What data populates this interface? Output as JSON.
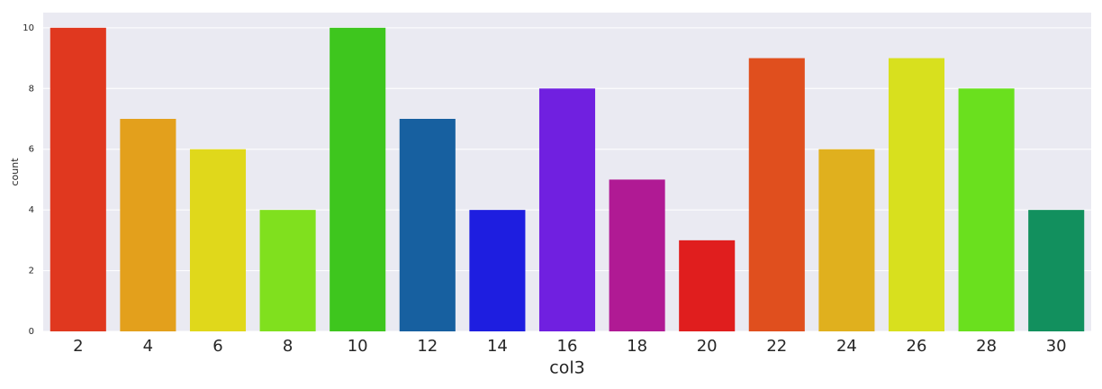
{
  "chart_data": {
    "type": "bar",
    "x_label": "col3",
    "y_label": "count",
    "categories": [
      "2",
      "4",
      "6",
      "8",
      "10",
      "12",
      "14",
      "16",
      "18",
      "20",
      "22",
      "24",
      "26",
      "28",
      "30"
    ],
    "values": [
      10,
      7,
      6,
      4,
      10,
      7,
      4,
      8,
      5,
      3,
      9,
      6,
      9,
      8,
      4
    ],
    "colors": [
      "#e0381f",
      "#e3a01c",
      "#e0d81b",
      "#80e01e",
      "#3ec61e",
      "#1760a0",
      "#1e1ee0",
      "#7020e0",
      "#b01a94",
      "#e01e1e",
      "#e04f1e",
      "#e0b01e",
      "#d8e01e",
      "#6ae01e",
      "#12905e"
    ],
    "ylim": [
      0,
      10.5
    ],
    "yticks": [
      0,
      2,
      4,
      6,
      8,
      10
    ],
    "grid": true,
    "background": "#eaeaf2"
  }
}
